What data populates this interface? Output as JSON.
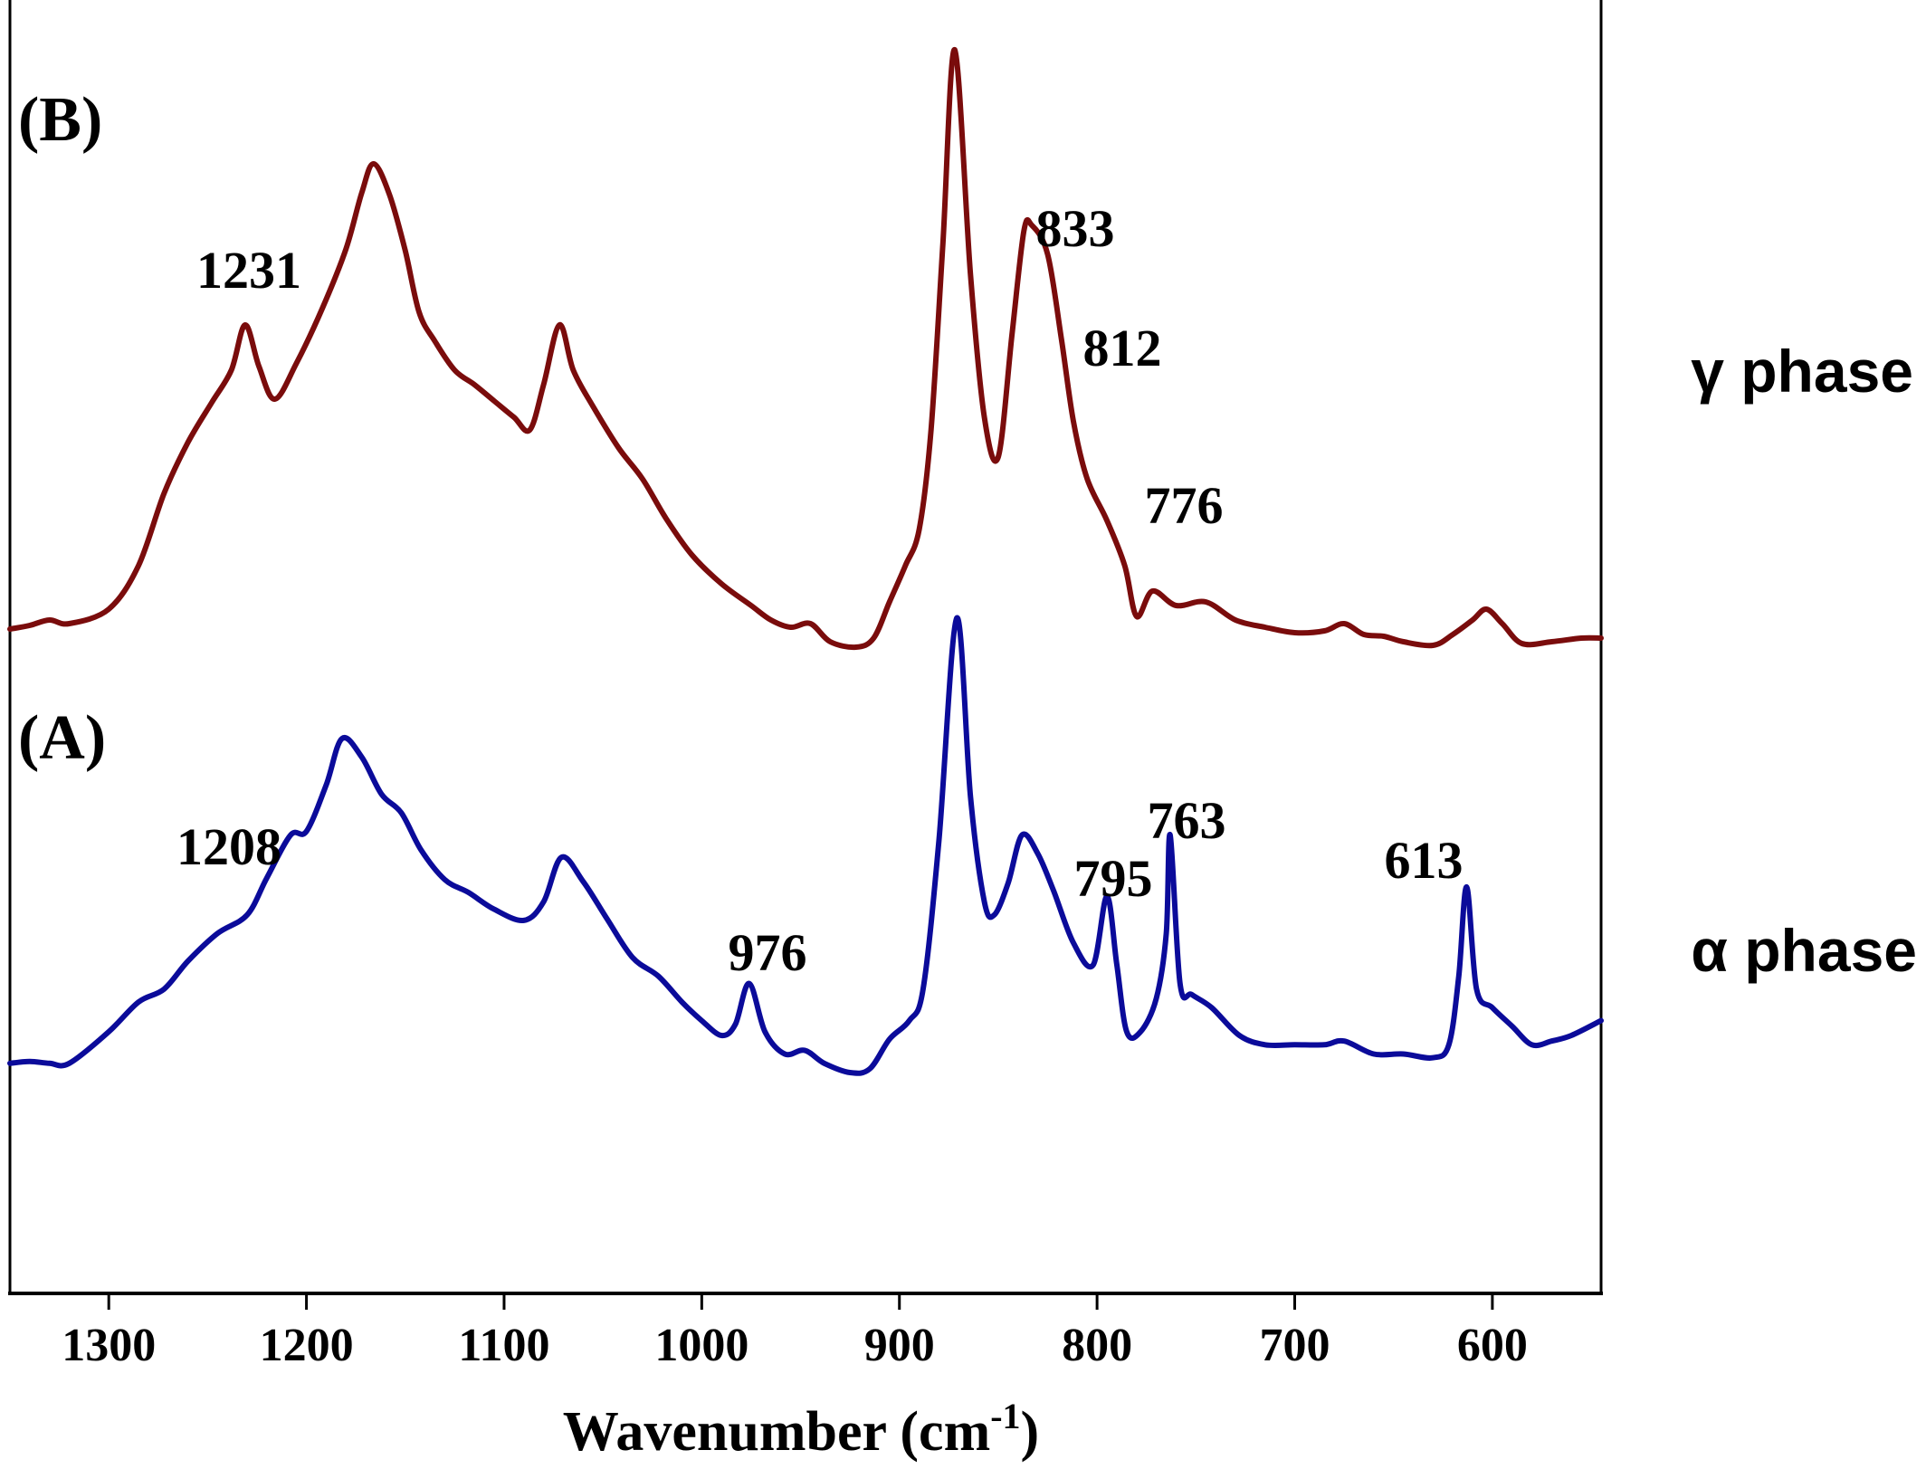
{
  "chart_data": {
    "type": "line",
    "xlabel": "Wavenumber (cm",
    "xlabel_sup": "-1",
    "xlabel_close": ")",
    "xlim": [
      1350,
      545
    ],
    "x_reversed": true,
    "x_ticks": [
      1300,
      1200,
      1100,
      1000,
      900,
      800,
      700,
      600
    ],
    "y_axis_visible": false,
    "grid": false,
    "colors": {
      "B": "#7a0c0c",
      "A": "#0b0b9a"
    },
    "panels": [
      {
        "id": "B",
        "panel_label": "(B)",
        "phase_label": "γ phase",
        "color": "#7a0c0c",
        "points": [
          [
            1350,
            5
          ],
          [
            1340,
            7
          ],
          [
            1330,
            10
          ],
          [
            1320,
            8
          ],
          [
            1300,
            16
          ],
          [
            1285,
            40
          ],
          [
            1272,
            80
          ],
          [
            1260,
            108
          ],
          [
            1248,
            130
          ],
          [
            1238,
            148
          ],
          [
            1231,
            173
          ],
          [
            1224,
            150
          ],
          [
            1216,
            132
          ],
          [
            1205,
            152
          ],
          [
            1192,
            182
          ],
          [
            1180,
            215
          ],
          [
            1172,
            246
          ],
          [
            1166,
            262
          ],
          [
            1158,
            245
          ],
          [
            1150,
            214
          ],
          [
            1143,
            180
          ],
          [
            1135,
            164
          ],
          [
            1125,
            148
          ],
          [
            1115,
            140
          ],
          [
            1105,
            131
          ],
          [
            1095,
            122
          ],
          [
            1087,
            115
          ],
          [
            1080,
            140
          ],
          [
            1072,
            173
          ],
          [
            1065,
            148
          ],
          [
            1055,
            128
          ],
          [
            1042,
            105
          ],
          [
            1030,
            88
          ],
          [
            1018,
            66
          ],
          [
            1005,
            46
          ],
          [
            990,
            30
          ],
          [
            975,
            18
          ],
          [
            965,
            10
          ],
          [
            955,
            6
          ],
          [
            945,
            8
          ],
          [
            935,
            -2
          ],
          [
            922,
            -5
          ],
          [
            913,
            0
          ],
          [
            905,
            20
          ],
          [
            897,
            40
          ],
          [
            890,
            60
          ],
          [
            884,
            115
          ],
          [
            878,
            218
          ],
          [
            872,
            325
          ],
          [
            864,
            200
          ],
          [
            857,
            122
          ],
          [
            850,
            100
          ],
          [
            843,
            168
          ],
          [
            837,
            225
          ],
          [
            833,
            228
          ],
          [
            825,
            212
          ],
          [
            818,
            165
          ],
          [
            812,
            120
          ],
          [
            805,
            88
          ],
          [
            795,
            65
          ],
          [
            786,
            40
          ],
          [
            780,
            12
          ],
          [
            772,
            26
          ],
          [
            760,
            18
          ],
          [
            745,
            20
          ],
          [
            730,
            10
          ],
          [
            715,
            6
          ],
          [
            700,
            3
          ],
          [
            685,
            4
          ],
          [
            675,
            8
          ],
          [
            665,
            2
          ],
          [
            655,
            1
          ],
          [
            645,
            -2
          ],
          [
            630,
            -4
          ],
          [
            620,
            2
          ],
          [
            610,
            10
          ],
          [
            603,
            16
          ],
          [
            595,
            8
          ],
          [
            585,
            -3
          ],
          [
            570,
            -2
          ],
          [
            555,
            0
          ],
          [
            545,
            0
          ]
        ]
      },
      {
        "id": "A",
        "panel_label": "(A)",
        "phase_label": "α phase",
        "color": "#0b0b9a",
        "points": [
          [
            1350,
            5
          ],
          [
            1340,
            6
          ],
          [
            1330,
            5
          ],
          [
            1320,
            5
          ],
          [
            1300,
            22
          ],
          [
            1285,
            38
          ],
          [
            1272,
            45
          ],
          [
            1260,
            60
          ],
          [
            1245,
            75
          ],
          [
            1230,
            85
          ],
          [
            1220,
            105
          ],
          [
            1208,
            128
          ],
          [
            1200,
            130
          ],
          [
            1190,
            155
          ],
          [
            1182,
            180
          ],
          [
            1172,
            170
          ],
          [
            1162,
            150
          ],
          [
            1152,
            140
          ],
          [
            1142,
            120
          ],
          [
            1130,
            104
          ],
          [
            1118,
            97
          ],
          [
            1105,
            88
          ],
          [
            1090,
            82
          ],
          [
            1080,
            92
          ],
          [
            1071,
            116
          ],
          [
            1060,
            103
          ],
          [
            1048,
            83
          ],
          [
            1035,
            62
          ],
          [
            1022,
            52
          ],
          [
            1010,
            38
          ],
          [
            1000,
            28
          ],
          [
            990,
            20
          ],
          [
            983,
            26
          ],
          [
            976,
            48
          ],
          [
            968,
            22
          ],
          [
            958,
            10
          ],
          [
            948,
            12
          ],
          [
            938,
            5
          ],
          [
            925,
            0
          ],
          [
            915,
            2
          ],
          [
            905,
            18
          ],
          [
            895,
            28
          ],
          [
            888,
            45
          ],
          [
            880,
            125
          ],
          [
            871,
            245
          ],
          [
            864,
            148
          ],
          [
            857,
            92
          ],
          [
            852,
            85
          ],
          [
            845,
            102
          ],
          [
            838,
            128
          ],
          [
            830,
            118
          ],
          [
            822,
            98
          ],
          [
            812,
            70
          ],
          [
            802,
            58
          ],
          [
            795,
            95
          ],
          [
            790,
            58
          ],
          [
            785,
            22
          ],
          [
            778,
            22
          ],
          [
            770,
            40
          ],
          [
            765,
            75
          ],
          [
            763,
            128
          ],
          [
            758,
            48
          ],
          [
            752,
            42
          ],
          [
            742,
            35
          ],
          [
            728,
            20
          ],
          [
            715,
            15
          ],
          [
            700,
            15
          ],
          [
            685,
            15
          ],
          [
            675,
            17
          ],
          [
            660,
            10
          ],
          [
            645,
            10
          ],
          [
            630,
            8
          ],
          [
            622,
            15
          ],
          [
            617,
            52
          ],
          [
            613,
            100
          ],
          [
            608,
            45
          ],
          [
            600,
            35
          ],
          [
            590,
            25
          ],
          [
            580,
            15
          ],
          [
            570,
            17
          ],
          [
            560,
            20
          ],
          [
            545,
            28
          ]
        ]
      }
    ],
    "annotations": [
      {
        "panel": "B",
        "text": "1231"
      },
      {
        "panel": "B",
        "text": "833"
      },
      {
        "panel": "B",
        "text": "812"
      },
      {
        "panel": "B",
        "text": "776"
      },
      {
        "panel": "A",
        "text": "1208"
      },
      {
        "panel": "A",
        "text": "976"
      },
      {
        "panel": "A",
        "text": "795"
      },
      {
        "panel": "A",
        "text": "763"
      },
      {
        "panel": "A",
        "text": "613"
      }
    ]
  }
}
